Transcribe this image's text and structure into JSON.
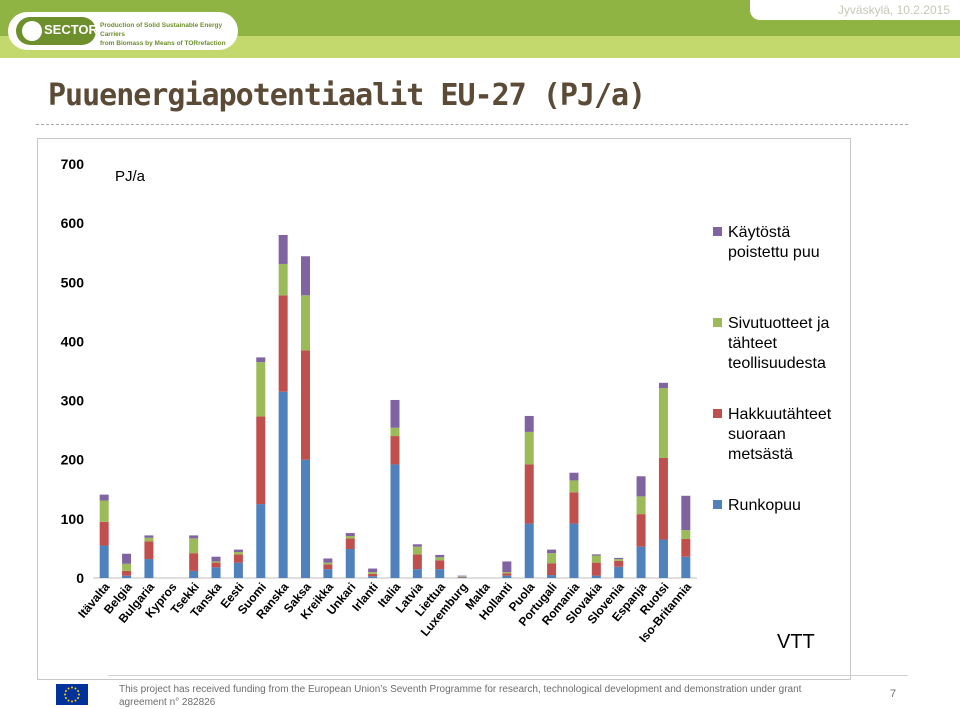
{
  "header": {
    "logo_text": "SECTOR",
    "logo_tagline_1": "Production of Solid Sustainable Energy Carriers",
    "logo_tagline_2": "from Biomass by Means of TORrefaction",
    "date": "Jyväskylä, 10.2.2015"
  },
  "slide": {
    "title": "Puuenergiapotentiaalit EU-27 (PJ/a)"
  },
  "chart_data": {
    "type": "bar",
    "stacked": true,
    "title": "",
    "unit_label": "PJ/a",
    "watermark": "VTT",
    "ylim": [
      0,
      700
    ],
    "yticks": [
      0,
      100,
      200,
      300,
      400,
      500,
      600,
      700
    ],
    "categories": [
      "Itävalta",
      "Belgia",
      "Bulgaria",
      "Kypros",
      "Tsekki",
      "Tanska",
      "Eesti",
      "Suomi",
      "Ranska",
      "Saksa",
      "Kreikka",
      "Unkari",
      "Irlanti",
      "Italia",
      "Latvia",
      "Liettua",
      "Luxemburg",
      "Malta",
      "Hollanti",
      "Puola",
      "Portugali",
      "Romania",
      "Slovakia",
      "Slovenia",
      "Espanja",
      "Ruotsi",
      "Iso-Britannia"
    ],
    "series": [
      {
        "name": "Runkopuu",
        "color": "#4f81bd",
        "values": [
          55,
          4,
          32,
          0,
          12,
          18,
          26,
          125,
          315,
          200,
          15,
          49,
          3,
          192,
          15,
          15,
          1,
          0,
          4,
          92,
          5,
          92,
          4,
          19,
          53,
          65,
          36
        ]
      },
      {
        "name": "Hakkuutähteet suoraan metsästä",
        "color": "#c0504d",
        "values": [
          40,
          8,
          30,
          0,
          30,
          8,
          14,
          148,
          163,
          185,
          8,
          18,
          4,
          48,
          25,
          15,
          1,
          0,
          4,
          100,
          20,
          53,
          22,
          10,
          55,
          138,
          30
        ]
      },
      {
        "name": "Sivutuotteet ja tähteet teollisuudesta",
        "color": "#9bbb59",
        "values": [
          36,
          12,
          6,
          0,
          25,
          2,
          4,
          92,
          53,
          93,
          3,
          4,
          3,
          14,
          13,
          5,
          1,
          0,
          2,
          55,
          17,
          20,
          12,
          3,
          30,
          118,
          15
        ]
      },
      {
        "name": "Käytöstä poistettu puu",
        "color": "#8064a2",
        "values": [
          10,
          17,
          4,
          0,
          5,
          8,
          4,
          8,
          49,
          66,
          7,
          5,
          6,
          47,
          4,
          4,
          1,
          0,
          18,
          27,
          6,
          13,
          2,
          2,
          34,
          9,
          58
        ]
      }
    ],
    "legend": {
      "position": "right",
      "order": [
        "Käytöstä poistettu puu",
        "Sivutuotteet ja tähteet teollisuudesta",
        "Hakkuutähteet suoraan metsästä",
        "Runkopuu"
      ]
    },
    "grid": false
  },
  "footer": {
    "funding_text": "This project has received funding from the European Union’s Seventh Programme for research, technological development and demonstration under grant agreement n° 282826",
    "page_number": "7"
  }
}
